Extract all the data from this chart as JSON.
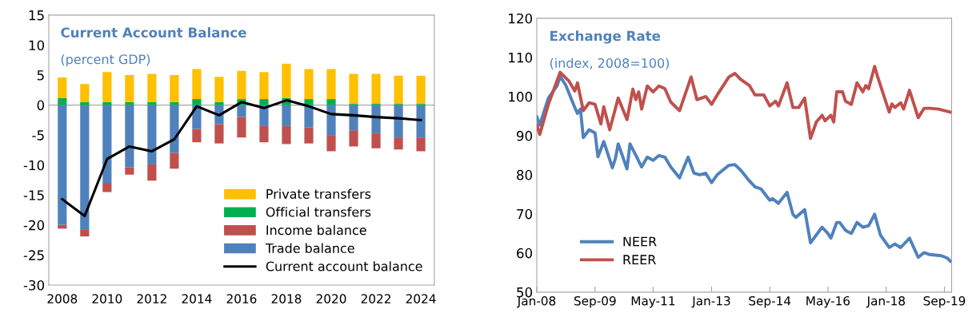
{
  "chart_data": [
    {
      "type": "bar",
      "title": "Current Account Balance",
      "subtitle": "(percent GDP)",
      "stacked": true,
      "categories": [
        "2008",
        null,
        "2010",
        null,
        "2012",
        null,
        "2014",
        null,
        "2016",
        null,
        "2018",
        null,
        "2020",
        null,
        "2022",
        null,
        "2024"
      ],
      "series": [
        {
          "name": "Trade balance",
          "color": "#4f81bd",
          "values": [
            -20.0,
            -20.7,
            -13.1,
            -10.4,
            -9.9,
            -8.0,
            -4.0,
            -3.2,
            -2.0,
            -3.5,
            -3.5,
            -3.7,
            -5.0,
            -4.2,
            -4.7,
            -5.4,
            -5.4
          ]
        },
        {
          "name": "Income balance",
          "color": "#c0504d",
          "values": [
            -0.6,
            -1.2,
            -1.4,
            -1.2,
            -2.7,
            -2.6,
            -2.2,
            -3.2,
            -3.4,
            -2.7,
            -3.0,
            -2.7,
            -2.7,
            -2.7,
            -2.5,
            -2.0,
            -2.3
          ]
        },
        {
          "name": "Official transfers",
          "color": "#00b050",
          "values": [
            1.2,
            0.5,
            0.5,
            0.5,
            0.5,
            0.5,
            1.0,
            0.5,
            1.0,
            1.0,
            1.2,
            1.0,
            1.0,
            0.2,
            0.2,
            0.2,
            0.2
          ]
        },
        {
          "name": "Private transfers",
          "color": "#ffc000",
          "values": [
            3.4,
            3.0,
            5.0,
            4.5,
            4.7,
            4.5,
            5.0,
            4.2,
            4.7,
            4.5,
            5.7,
            5.0,
            5.0,
            5.0,
            5.0,
            4.7,
            4.7
          ]
        },
        {
          "name": "Current account balance",
          "type": "line",
          "color": "#000000",
          "values": [
            -15.7,
            -18.5,
            -9.0,
            -6.9,
            -7.7,
            -5.7,
            -0.2,
            -1.7,
            0.5,
            -0.5,
            0.8,
            -0.2,
            -1.5,
            -1.7,
            -2.0,
            -2.2,
            -2.5
          ]
        }
      ],
      "ref_lines": [
        {
          "axis": "y",
          "value": 0,
          "color": "#a6a6a6"
        }
      ],
      "ylim": [
        -30,
        15
      ],
      "yticks": [
        -30,
        -25,
        -20,
        -15,
        -10,
        -5,
        0,
        5,
        10,
        15
      ],
      "grid": false,
      "legend": "bottom right"
    },
    {
      "type": "line",
      "title": "Exchange Rate",
      "subtitle": "(index, 2008=100)",
      "series": [
        {
          "name": "NEER",
          "color": "#4f81bd",
          "x": [
            "2008-01",
            "2008-02",
            "2008-05",
            "2008-08",
            "2008-09",
            "2008-11",
            "2009-02",
            "2009-03",
            "2009-04",
            "2009-05",
            "2009-07",
            "2009-09",
            "2009-10",
            "2009-12",
            "2010-03",
            "2010-04",
            "2010-05",
            "2010-08",
            "2010-09",
            "2010-11",
            "2011-01",
            "2011-03",
            "2011-05",
            "2011-07",
            "2011-09",
            "2011-11",
            "2012-02",
            "2012-05",
            "2012-07",
            "2012-09",
            "2012-11",
            "2013-01",
            "2013-03",
            "2013-07",
            "2013-09",
            "2013-11",
            "2014-02",
            "2014-04",
            "2014-06",
            "2014-09",
            "2014-10",
            "2014-12",
            "2015-03",
            "2015-05",
            "2015-06",
            "2015-09",
            "2015-11",
            "2016-03",
            "2016-05",
            "2016-06",
            "2016-08",
            "2016-09",
            "2016-11",
            "2017-01",
            "2017-03",
            "2017-05",
            "2017-07",
            "2017-09",
            "2017-11",
            "2018-02",
            "2018-04",
            "2018-06",
            "2018-09",
            "2018-12",
            "2019-02",
            "2019-04",
            "2019-08",
            "2019-10",
            "2019-11"
          ],
          "values": [
            94.8,
            92.7,
            99.6,
            102.8,
            105.2,
            102.8,
            97.2,
            95.7,
            96.8,
            89.5,
            91.5,
            90.7,
            84.6,
            88.5,
            81.8,
            84.1,
            87.9,
            81.5,
            87.9,
            85.0,
            82.0,
            84.5,
            83.7,
            84.9,
            84.5,
            82.0,
            79.2,
            84.5,
            80.4,
            80.0,
            80.4,
            78.0,
            80.0,
            82.4,
            82.6,
            81.2,
            78.4,
            76.9,
            76.4,
            73.5,
            73.9,
            72.7,
            75.5,
            69.9,
            69.1,
            71.1,
            62.6,
            66.6,
            65.0,
            63.8,
            67.8,
            67.8,
            65.8,
            65.0,
            67.8,
            66.6,
            67.0,
            69.9,
            64.6,
            61.4,
            62.3,
            61.4,
            63.8,
            58.9,
            60.1,
            59.6,
            59.3,
            58.7,
            57.9
          ]
        },
        {
          "name": "REER",
          "color": "#c0504d",
          "x": [
            "2008-01",
            "2008-02",
            "2008-05",
            "2008-09",
            "2008-12",
            "2009-02",
            "2009-03",
            "2009-05",
            "2009-07",
            "2009-09",
            "2009-11",
            "2009-12",
            "2010-02",
            "2010-05",
            "2010-08",
            "2010-10",
            "2010-11",
            "2010-12",
            "2011-01",
            "2011-03",
            "2011-05",
            "2011-07",
            "2011-09",
            "2011-11",
            "2012-02",
            "2012-03",
            "2012-06",
            "2012-08",
            "2012-11",
            "2013-01",
            "2013-03",
            "2013-07",
            "2013-09",
            "2013-11",
            "2014-02",
            "2014-04",
            "2014-07",
            "2014-09",
            "2014-11",
            "2014-12",
            "2015-03",
            "2015-05",
            "2015-07",
            "2015-09",
            "2015-11",
            "2016-01",
            "2016-03",
            "2016-04",
            "2016-06",
            "2016-07",
            "2016-08",
            "2016-10",
            "2016-11",
            "2017-01",
            "2017-03",
            "2017-05",
            "2017-06",
            "2017-07",
            "2017-09",
            "2017-10",
            "2018-02",
            "2018-03",
            "2018-04",
            "2018-06",
            "2018-07",
            "2018-09",
            "2018-12",
            "2019-02",
            "2019-04",
            "2019-07",
            "2019-11"
          ],
          "values": [
            92.7,
            90.3,
            98.0,
            106.2,
            104.0,
            101.4,
            103.5,
            96.4,
            98.4,
            98.0,
            93.0,
            97.4,
            91.5,
            99.6,
            94.1,
            101.9,
            99.2,
            101.2,
            96.8,
            102.7,
            101.2,
            102.7,
            102.0,
            98.6,
            96.4,
            98.4,
            105.0,
            99.2,
            100.0,
            98.0,
            100.4,
            105.0,
            105.9,
            104.4,
            102.8,
            100.4,
            100.4,
            97.6,
            98.8,
            97.6,
            103.5,
            97.2,
            97.2,
            99.6,
            89.3,
            93.5,
            95.2,
            93.8,
            95.2,
            93.5,
            101.2,
            101.2,
            98.8,
            98.0,
            103.5,
            101.2,
            102.8,
            102.0,
            107.7,
            105.2,
            96.0,
            98.1,
            97.2,
            98.4,
            96.8,
            101.6,
            94.6,
            97.0,
            97.0,
            96.8,
            96.0
          ]
        }
      ],
      "xlim": [
        "2008-01",
        "2019-11-15"
      ],
      "xticks": [
        {
          "value": "2008-01",
          "label": "Jan-08"
        },
        {
          "value": "2009-09",
          "label": "Sep-09"
        },
        {
          "value": "2011-05",
          "label": "May-11"
        },
        {
          "value": "2013-01",
          "label": "Jan-13"
        },
        {
          "value": "2014-09",
          "label": "Sep-14"
        },
        {
          "value": "2016-05",
          "label": "May-16"
        },
        {
          "value": "2018-01",
          "label": "Jan-18"
        },
        {
          "value": "2019-09",
          "label": "Sep-19"
        }
      ],
      "ylim": [
        50,
        120
      ],
      "yticks": [
        50,
        60,
        70,
        80,
        90,
        100,
        110,
        120
      ],
      "grid": false,
      "legend": "bottom left"
    }
  ]
}
